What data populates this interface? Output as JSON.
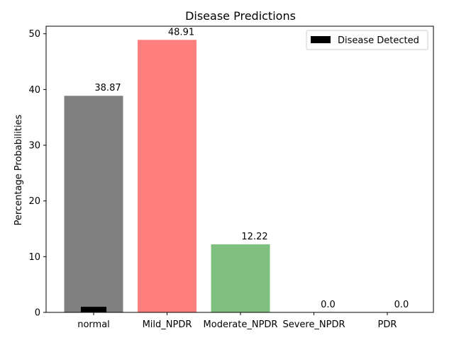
{
  "chart_data": {
    "type": "bar",
    "title": "Disease Predictions",
    "xlabel": "",
    "ylabel": "Percentage Probabilities",
    "categories": [
      "normal",
      "Mild_NPDR",
      "Moderate_NPDR",
      "Severe_NPDR",
      "PDR"
    ],
    "values": [
      38.87,
      48.91,
      12.22,
      0.0,
      0.0
    ],
    "value_labels": [
      "38.87",
      "48.91",
      "12.22",
      "0.0",
      "0.0"
    ],
    "colors": [
      "#808080",
      "#ff7f7f",
      "#7fbf7f",
      "#7f7fff",
      "#ffff7f"
    ],
    "ylim": [
      0,
      51.36
    ],
    "yticks": [
      0,
      10,
      20,
      30,
      40,
      50
    ],
    "grid": false,
    "legend": {
      "placement": "top-right",
      "entries": [
        {
          "label": "Disease Detected",
          "color": "#000000"
        }
      ]
    },
    "detected_marker": {
      "category": "normal",
      "value": 1,
      "color": "#000000"
    }
  }
}
